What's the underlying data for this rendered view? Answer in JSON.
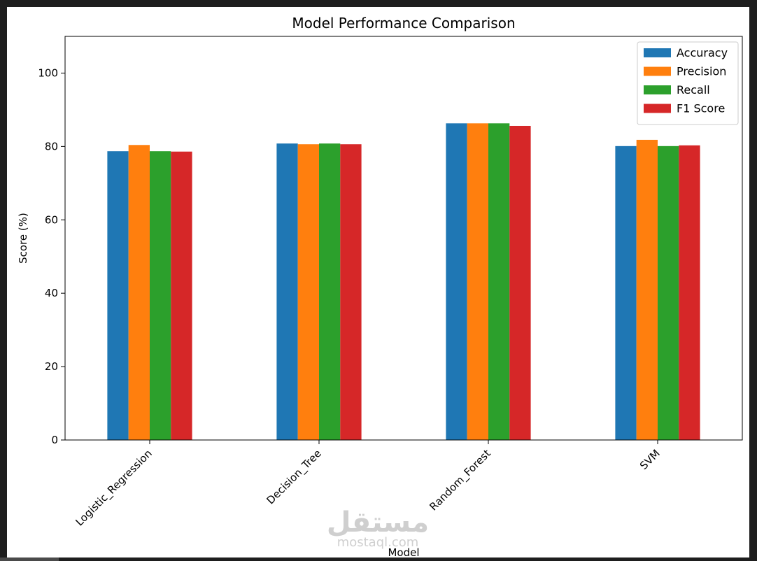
{
  "chart_data": {
    "type": "bar",
    "title": "Model Performance Comparison",
    "xlabel": "Model",
    "ylabel": "Score (%)",
    "categories": [
      "Logistic_Regression",
      "Decision_Tree",
      "Random_Forest",
      "SVM"
    ],
    "ylim": [
      0,
      110
    ],
    "yticks": [
      0,
      20,
      40,
      60,
      80,
      100
    ],
    "grid": false,
    "legend_position": "upper right",
    "series": [
      {
        "name": "Accuracy",
        "color": "#1f77b4",
        "values": [
          78.7,
          80.8,
          86.3,
          80.1
        ]
      },
      {
        "name": "Precision",
        "color": "#ff7f0e",
        "values": [
          80.4,
          80.6,
          86.3,
          81.8
        ]
      },
      {
        "name": "Recall",
        "color": "#2ca02c",
        "values": [
          78.7,
          80.8,
          86.3,
          80.1
        ]
      },
      {
        "name": "F1 Score",
        "color": "#d62728",
        "values": [
          78.6,
          80.6,
          85.6,
          80.3
        ]
      }
    ]
  },
  "watermark": {
    "arabic": "مستقل",
    "latin": "mostaql.com"
  }
}
